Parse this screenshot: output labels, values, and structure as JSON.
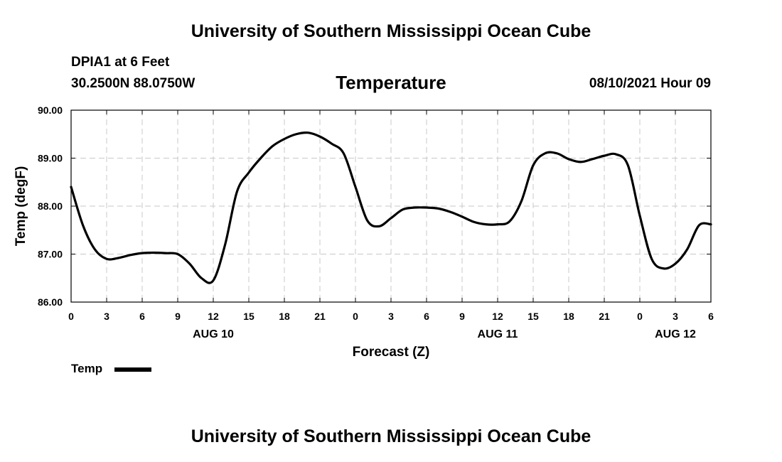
{
  "header": {
    "title": "University of Southern Mississippi Ocean Cube",
    "station": "DPIA1 at 6 Feet",
    "coordinates": "30.2500N  88.0750W",
    "datetime": "08/10/2021 Hour 09"
  },
  "footer": {
    "title": "University of Southern Mississippi Ocean Cube"
  },
  "chart_data": {
    "type": "line",
    "title": "Temperature",
    "xlabel": "Forecast (Z)",
    "ylabel": "Temp (degF)",
    "xlim": [
      0,
      54
    ],
    "ylim": [
      86.0,
      90.0
    ],
    "grid": true,
    "legend_position": "bottom-left",
    "yticks": [
      {
        "value": 86.0,
        "label": "86.00"
      },
      {
        "value": 87.0,
        "label": "87.00"
      },
      {
        "value": 88.0,
        "label": "88.00"
      },
      {
        "value": 89.0,
        "label": "89.00"
      },
      {
        "value": 90.0,
        "label": "90.00"
      }
    ],
    "xticks": [
      {
        "value": 0,
        "label": "0"
      },
      {
        "value": 3,
        "label": "3"
      },
      {
        "value": 6,
        "label": "6"
      },
      {
        "value": 9,
        "label": "9"
      },
      {
        "value": 12,
        "label": "12"
      },
      {
        "value": 15,
        "label": "15"
      },
      {
        "value": 18,
        "label": "18"
      },
      {
        "value": 21,
        "label": "21"
      },
      {
        "value": 24,
        "label": "0"
      },
      {
        "value": 27,
        "label": "3"
      },
      {
        "value": 30,
        "label": "6"
      },
      {
        "value": 33,
        "label": "9"
      },
      {
        "value": 36,
        "label": "12"
      },
      {
        "value": 39,
        "label": "15"
      },
      {
        "value": 42,
        "label": "18"
      },
      {
        "value": 45,
        "label": "21"
      },
      {
        "value": 48,
        "label": "0"
      },
      {
        "value": 51,
        "label": "3"
      },
      {
        "value": 54,
        "label": "6"
      }
    ],
    "day_labels": [
      {
        "value": 12,
        "label": "AUG 10"
      },
      {
        "value": 36,
        "label": "AUG 11"
      },
      {
        "value": 51,
        "label": "AUG 12"
      }
    ],
    "series": [
      {
        "name": "Temp",
        "color": "#000000",
        "x": [
          0,
          1,
          2,
          3,
          4,
          5,
          6,
          7,
          8,
          9,
          10,
          11,
          12,
          13,
          14,
          15,
          16,
          17,
          18,
          19,
          20,
          21,
          22,
          23,
          24,
          25,
          26,
          27,
          28,
          29,
          30,
          31,
          32,
          33,
          34,
          35,
          36,
          37,
          38,
          39,
          40,
          41,
          42,
          43,
          44,
          45,
          46,
          47,
          48,
          49,
          50,
          51,
          52,
          53,
          54
        ],
        "values": [
          88.4,
          87.6,
          87.1,
          86.9,
          86.92,
          86.98,
          87.02,
          87.03,
          87.02,
          87.0,
          86.8,
          86.5,
          86.45,
          87.2,
          88.3,
          88.7,
          89.0,
          89.25,
          89.4,
          89.5,
          89.53,
          89.45,
          89.3,
          89.1,
          88.4,
          87.7,
          87.58,
          87.75,
          87.93,
          87.97,
          87.97,
          87.95,
          87.88,
          87.78,
          87.67,
          87.62,
          87.62,
          87.68,
          88.1,
          88.85,
          89.1,
          89.1,
          88.98,
          88.92,
          88.98,
          89.05,
          89.08,
          88.85,
          87.8,
          86.9,
          86.7,
          86.8,
          87.1,
          87.6,
          87.62
        ]
      }
    ]
  }
}
